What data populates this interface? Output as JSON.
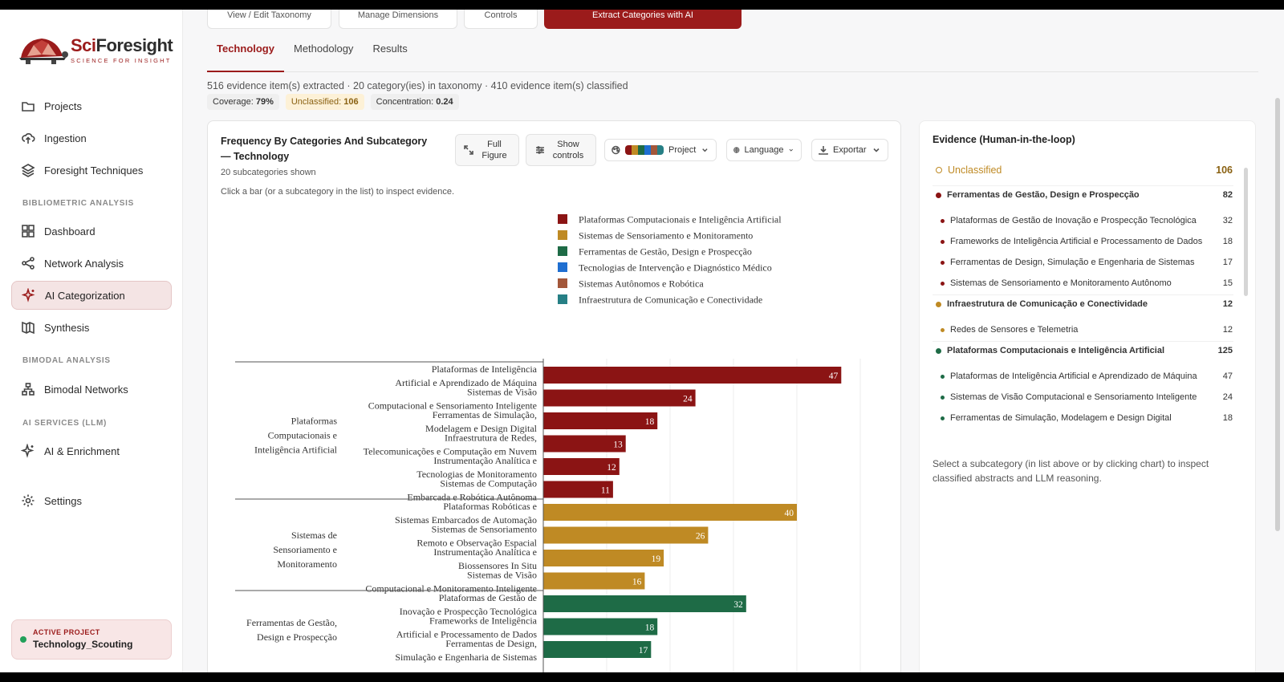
{
  "app": {
    "logo_name_a": "Sci",
    "logo_name_b": "Foresight",
    "logo_tagline": "SCIENCE FOR INSIGHT"
  },
  "sidebar": {
    "items": [
      {
        "label": "Projects",
        "icon": "folder-icon"
      },
      {
        "label": "Ingestion",
        "icon": "cloud-upload-icon"
      },
      {
        "label": "Foresight Techniques",
        "icon": "layers-icon"
      },
      {
        "label": "Dashboard",
        "icon": "grid-icon"
      },
      {
        "label": "Network Analysis",
        "icon": "share-icon"
      },
      {
        "label": "AI Categorization",
        "icon": "sparkle-icon",
        "active": true
      },
      {
        "label": "Synthesis",
        "icon": "book-icon"
      },
      {
        "label": "Bimodal Networks",
        "icon": "network-icon"
      },
      {
        "label": "AI & Enrichment",
        "icon": "sparkle-icon"
      },
      {
        "label": "Settings",
        "icon": "gear-icon"
      }
    ],
    "sections": [
      "BIBLIOMETRIC ANALYSIS",
      "BIMODAL ANALYSIS",
      "AI SERVICES (LLM)"
    ],
    "active_project_label": "ACTIVE PROJECT",
    "active_project_name": "Technology_Scouting"
  },
  "toolbar": {
    "buttons": [
      "View / Edit Taxonomy",
      "Manage Dimensions",
      "Controls"
    ],
    "primary": "Extract Categories with AI"
  },
  "tabs": [
    "Technology",
    "Methodology",
    "Results"
  ],
  "summary": "516 evidence item(s) extracted · 20 category(ies) in taxonomy · 410 evidence item(s) classified",
  "stats": {
    "coverage_label": "Coverage:",
    "coverage": "79%",
    "unclassified_label": "Unclassified:",
    "unclassified": "106",
    "concentration_label": "Concentration:",
    "concentration": "0.24"
  },
  "chart_card": {
    "title": "Frequency By Categories And Subcategory — Technology",
    "subtitle": "20 subcategories shown",
    "hint": "Click a bar (or a subcategory in the list) to inspect evidence.",
    "full_figure": "Full Figure",
    "show_controls": "Show controls",
    "palette_label": "Project",
    "language_label": "Language",
    "export_label": "Exportar",
    "palette_colors": [
      "#8b1414",
      "#bf8a24",
      "#1e6b46",
      "#1f6fd1",
      "#a3573a",
      "#267f85"
    ]
  },
  "chart_data": {
    "type": "bar",
    "orientation": "horizontal",
    "title": "",
    "xlim": [
      0,
      50
    ],
    "grid": true,
    "legend_position": "top-center",
    "legend": [
      {
        "name": "Plataformas Computacionais e Inteligência Artificial",
        "color": "#8b1414"
      },
      {
        "name": "Sistemas de Sensoriamento e Monitoramento",
        "color": "#bf8a24"
      },
      {
        "name": "Ferramentas de Gestão, Design e Prospecção",
        "color": "#1e6b46"
      },
      {
        "name": "Tecnologias de Intervenção e Diagnóstico Médico",
        "color": "#1f6fd1"
      },
      {
        "name": "Sistemas Autônomos e Robótica",
        "color": "#a3573a"
      },
      {
        "name": "Infraestrutura de Comunicação e Conectividade",
        "color": "#267f85"
      }
    ],
    "groups": [
      {
        "name_lines": [
          "Plataformas",
          "Computacionais e",
          "Inteligência Artificial"
        ],
        "color": "#8b1414",
        "bars": [
          {
            "lines": [
              "Plataformas de Inteligência",
              "Artificial e Aprendizado de Máquina"
            ],
            "value": 47
          },
          {
            "lines": [
              "Sistemas de Visão",
              "Computacional e Sensoriamento Inteligente"
            ],
            "value": 24
          },
          {
            "lines": [
              "Ferramentas de Simulação,",
              "Modelagem e Design Digital"
            ],
            "value": 18
          },
          {
            "lines": [
              "Infraestrutura de Redes,",
              "Telecomunicações e Computação em Nuvem"
            ],
            "value": 13
          },
          {
            "lines": [
              "Instrumentação Analítica e",
              "Tecnologias de Monitoramento"
            ],
            "value": 12
          },
          {
            "lines": [
              "Sistemas de Computação",
              "Embarcada e Robótica Autônoma"
            ],
            "value": 11
          }
        ]
      },
      {
        "name_lines": [
          "Sistemas de",
          "Sensoriamento e",
          "Monitoramento"
        ],
        "color": "#bf8a24",
        "bars": [
          {
            "lines": [
              "Plataformas Robóticas e",
              "Sistemas Embarcados de Automação"
            ],
            "value": 40
          },
          {
            "lines": [
              "Sistemas de Sensoriamento",
              "Remoto e Observação Espacial"
            ],
            "value": 26
          },
          {
            "lines": [
              "Instrumentação Analítica e",
              "Biossensores In Situ"
            ],
            "value": 19
          },
          {
            "lines": [
              "Sistemas de Visão",
              "Computacional e Monitoramento Inteligente"
            ],
            "value": 16
          }
        ]
      },
      {
        "name_lines": [
          "Ferramentas de Gestão,",
          "Design e Prospecção"
        ],
        "color": "#1e6b46",
        "bars": [
          {
            "lines": [
              "Plataformas de Gestão de",
              "Inovação e Prospecção Tecnológica"
            ],
            "value": 32
          },
          {
            "lines": [
              "Frameworks de Inteligência",
              "Artificial e Processamento de Dados"
            ],
            "value": 18
          },
          {
            "lines": [
              "Ferramentas de Design,",
              "Simulação e Engenharia de Sistemas"
            ],
            "value": 17
          }
        ]
      }
    ]
  },
  "evidence": {
    "title": "Evidence (Human-in-the-loop)",
    "rows": [
      {
        "kind": "unclassified",
        "label": "Unclassified",
        "count": "106",
        "color": "#bf8a24"
      },
      {
        "kind": "group",
        "label": "Ferramentas de Gestão, Design e Prospecção",
        "count": "82",
        "color": "#8b1414"
      },
      {
        "kind": "sub",
        "label": "Plataformas de Gestão de Inovação e Prospecção Tecnológica",
        "count": "32",
        "color": "#8b1414"
      },
      {
        "kind": "sub",
        "label": "Frameworks de Inteligência Artificial e Processamento de Dados",
        "count": "18",
        "color": "#8b1414"
      },
      {
        "kind": "sub",
        "label": "Ferramentas de Design, Simulação e Engenharia de Sistemas",
        "count": "17",
        "color": "#8b1414"
      },
      {
        "kind": "sub",
        "label": "Sistemas de Sensoriamento e Monitoramento Autônomo",
        "count": "15",
        "color": "#8b1414"
      },
      {
        "kind": "group",
        "label": "Infraestrutura de Comunicação e Conectividade",
        "count": "12",
        "color": "#bf8a24"
      },
      {
        "kind": "sub",
        "label": "Redes de Sensores e Telemetria",
        "count": "12",
        "color": "#bf8a24"
      },
      {
        "kind": "group",
        "label": "Plataformas Computacionais e Inteligência Artificial",
        "count": "125",
        "color": "#1e6b46"
      },
      {
        "kind": "sub",
        "label": "Plataformas de Inteligência Artificial e Aprendizado de Máquina",
        "count": "47",
        "color": "#1e6b46"
      },
      {
        "kind": "sub",
        "label": "Sistemas de Visão Computacional e Sensoriamento Inteligente",
        "count": "24",
        "color": "#1e6b46"
      },
      {
        "kind": "sub",
        "label": "Ferramentas de Simulação, Modelagem e Design Digital",
        "count": "18",
        "color": "#1e6b46"
      }
    ],
    "footer": "Select a subcategory (in list above or by clicking chart) to inspect classified abstracts and LLM reasoning."
  }
}
